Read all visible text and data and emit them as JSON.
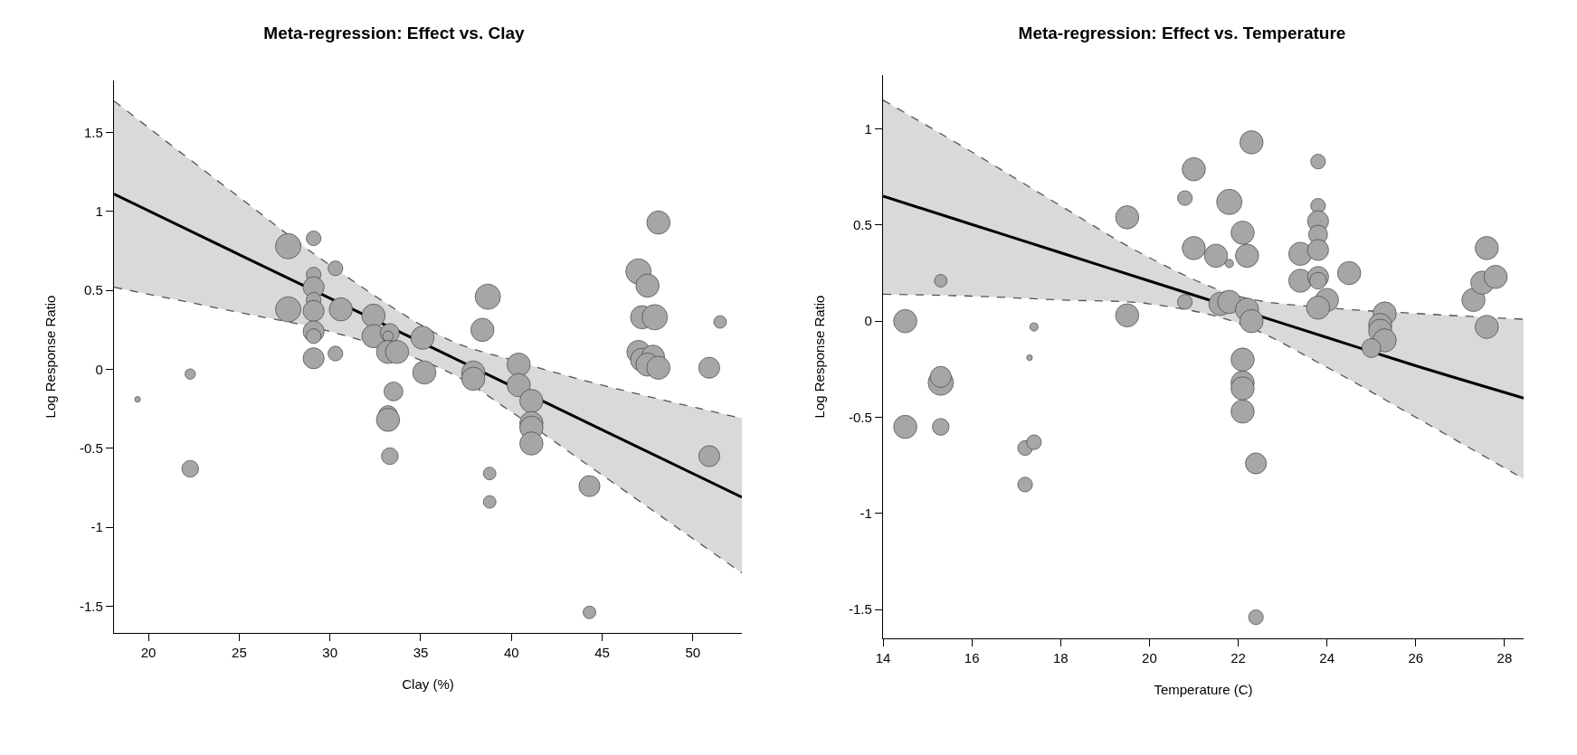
{
  "chart_data": [
    {
      "type": "bubble",
      "title": "Meta-regression: Effect vs. Clay",
      "xlabel": "Clay (%)",
      "ylabel": "Log Response Ratio",
      "xlim": [
        18.1,
        52.7
      ],
      "ylim": [
        -1.67,
        1.83
      ],
      "xticks": [
        20,
        25,
        30,
        35,
        40,
        45,
        50
      ],
      "yticks": [
        -1.5,
        -1,
        -0.5,
        0,
        0.5,
        1,
        1.5
      ],
      "grid": false,
      "marker": "circle",
      "series": [
        {
          "color": "#a6a6a6",
          "x": [
            19.4,
            22.3,
            22.3,
            27.7,
            27.7,
            29.1,
            29.1,
            29.1,
            29.1,
            29.1,
            29.1,
            29.1,
            29.1,
            30.3,
            30.3,
            30.6,
            32.4,
            32.4,
            33.3,
            33.2,
            33.2,
            33.7,
            33.5,
            33.2,
            33.2,
            33.3,
            35.1,
            35.2,
            38.4,
            38.7,
            37.9,
            37.9,
            38.8,
            38.8,
            40.4,
            40.4,
            41.1,
            41.1,
            41.1,
            41.1,
            44.3,
            44.3,
            47.0,
            47.5,
            47.2,
            47.9,
            47.0,
            47.2,
            47.8,
            47.5,
            48.1,
            48.1,
            50.9,
            50.9,
            51.5
          ],
          "values": [
            -0.19,
            -0.03,
            -0.63,
            0.78,
            0.38,
            0.83,
            0.6,
            0.52,
            0.44,
            0.37,
            0.24,
            0.21,
            0.07,
            0.64,
            0.1,
            0.38,
            0.34,
            0.21,
            0.23,
            0.21,
            0.11,
            0.11,
            -0.14,
            -0.29,
            -0.32,
            -0.55,
            0.2,
            -0.02,
            0.25,
            0.46,
            -0.02,
            -0.06,
            -0.66,
            -0.84,
            0.03,
            -0.1,
            -0.2,
            -0.34,
            -0.37,
            -0.47,
            -0.74,
            -1.54,
            0.62,
            0.53,
            0.33,
            0.33,
            0.11,
            0.06,
            0.08,
            0.03,
            0.01,
            0.93,
            0.01,
            -0.55,
            0.3
          ],
          "sizes": [
            0.05,
            0.17,
            0.44,
            1,
            1,
            0.34,
            0.34,
            0.69,
            0.34,
            0.69,
            0.69,
            0.34,
            0.69,
            0.34,
            0.34,
            0.84,
            0.84,
            0.84,
            0.56,
            0.17,
            0.84,
            0.84,
            0.56,
            0.56,
            0.84,
            0.44,
            0.84,
            0.84,
            0.84,
            1,
            0.84,
            0.84,
            0.25,
            0.25,
            0.84,
            0.84,
            0.84,
            0.84,
            0.84,
            0.84,
            0.69,
            0.25,
            1,
            0.84,
            0.84,
            1,
            0.84,
            0.84,
            0.84,
            0.84,
            0.84,
            0.84,
            0.69,
            0.69,
            0.25
          ]
        },
        {
          "type": "line",
          "color": "#000000",
          "line_style": "solid",
          "marker": "none",
          "x": [
            18.1,
            25,
            30,
            36.5,
            40,
            45,
            52.7
          ],
          "values": [
            1.11,
            0.727,
            0.45,
            0.089,
            -0.105,
            -0.383,
            -0.81
          ],
          "upper": [
            1.7,
            1.09,
            0.66,
            0.19,
            0.06,
            -0.1,
            -0.31
          ],
          "lower": [
            0.52,
            0.36,
            0.24,
            -0.015,
            -0.27,
            -0.67,
            -1.29
          ]
        },
        {
          "type": "line",
          "color": "#555555",
          "line_style": "dashed",
          "marker": "none",
          "x": [
            18.1,
            25,
            30,
            36.5,
            40,
            45,
            52.7
          ],
          "values": [
            1.7,
            1.09,
            0.66,
            0.19,
            0.06,
            -0.1,
            -0.31
          ]
        },
        {
          "type": "line",
          "color": "#555555",
          "line_style": "dashed",
          "marker": "none",
          "x": [
            18.1,
            25,
            30,
            36.5,
            40,
            45,
            52.7
          ],
          "values": [
            0.52,
            0.36,
            0.24,
            -0.015,
            -0.27,
            -0.67,
            -1.29
          ]
        }
      ]
    },
    {
      "type": "bubble",
      "title": "Meta-regression: Effect vs. Temperature",
      "xlabel": "Temperature (C)",
      "ylabel": "Log Response Ratio",
      "xlim": [
        14,
        28.43
      ],
      "ylim": [
        -1.65,
        1.28
      ],
      "xticks": [
        14,
        16,
        18,
        20,
        22,
        24,
        26,
        28
      ],
      "yticks": [
        -1.5,
        -1,
        -0.5,
        0,
        0.5,
        1
      ],
      "grid": false,
      "marker": "circle",
      "series": [
        {
          "color": "#a6a6a6",
          "x": [
            14.5,
            14.5,
            15.3,
            15.3,
            15.3,
            15.3,
            17.4,
            17.3,
            17.2,
            17.4,
            17.2,
            19.5,
            19.5,
            20.8,
            20.8,
            21.0,
            21.0,
            21.5,
            21.8,
            21.8,
            22.1,
            22.2,
            21.6,
            21.8,
            22.3,
            22.2,
            22.3,
            22.1,
            22.1,
            22.1,
            22.1,
            22.4,
            22.4,
            23.4,
            23.4,
            23.8,
            23.8,
            23.8,
            23.8,
            23.8,
            23.8,
            23.8,
            24.0,
            23.8,
            24.5,
            25.3,
            25.2,
            25.2,
            25.3,
            25.0,
            27.3,
            27.6,
            27.5,
            27.8,
            27.6
          ],
          "values": [
            0.0,
            -0.55,
            0.21,
            -0.32,
            -0.29,
            -0.55,
            -0.03,
            -0.19,
            -0.66,
            -0.63,
            -0.85,
            0.54,
            0.03,
            0.64,
            0.1,
            0.79,
            0.38,
            0.34,
            0.62,
            0.3,
            0.46,
            0.34,
            0.09,
            0.1,
            0.93,
            0.06,
            0.0,
            -0.2,
            -0.32,
            -0.35,
            -0.47,
            -0.74,
            -1.54,
            0.35,
            0.21,
            0.83,
            0.6,
            0.52,
            0.45,
            0.37,
            0.23,
            0.21,
            0.11,
            0.07,
            0.25,
            0.04,
            -0.02,
            -0.05,
            -0.1,
            -0.14,
            0.11,
            0.38,
            0.2,
            0.23,
            -0.03
          ],
          "sizes": [
            0.84,
            0.84,
            0.25,
            1,
            0.69,
            0.44,
            0.11,
            0.05,
            0.34,
            0.34,
            0.34,
            0.84,
            0.84,
            0.34,
            0.34,
            0.84,
            0.84,
            0.84,
            1,
            0.11,
            0.84,
            0.84,
            0.84,
            0.84,
            0.84,
            0.84,
            0.84,
            0.84,
            0.84,
            0.84,
            0.84,
            0.69,
            0.34,
            0.84,
            0.84,
            0.34,
            0.34,
            0.69,
            0.56,
            0.69,
            0.69,
            0.44,
            0.84,
            0.84,
            0.84,
            0.84,
            0.84,
            0.84,
            0.84,
            0.56,
            0.84,
            0.84,
            0.84,
            0.84,
            0.84
          ]
        },
        {
          "type": "line",
          "color": "#000000",
          "line_style": "solid",
          "marker": "none",
          "x": [
            14,
            16,
            18,
            20,
            22,
            24,
            26,
            28.43
          ],
          "values": [
            0.65,
            0.503,
            0.356,
            0.209,
            0.062,
            -0.085,
            -0.232,
            -0.4
          ],
          "upper": [
            1.15,
            0.88,
            0.6,
            0.33,
            0.13,
            0.07,
            0.04,
            0.01
          ],
          "lower": [
            0.14,
            0.13,
            0.11,
            0.09,
            -0.01,
            -0.24,
            -0.5,
            -0.82
          ]
        },
        {
          "type": "line",
          "color": "#555555",
          "line_style": "dashed",
          "marker": "none",
          "x": [
            14,
            16,
            18,
            20,
            22,
            24,
            26,
            28.43
          ],
          "values": [
            1.15,
            0.88,
            0.6,
            0.33,
            0.13,
            0.07,
            0.04,
            0.01
          ]
        },
        {
          "type": "line",
          "color": "#555555",
          "line_style": "dashed",
          "marker": "none",
          "x": [
            14,
            16,
            18,
            20,
            22,
            24,
            26,
            28.43
          ],
          "values": [
            0.14,
            0.13,
            0.11,
            0.09,
            -0.01,
            -0.24,
            -0.5,
            -0.82
          ]
        }
      ]
    }
  ]
}
